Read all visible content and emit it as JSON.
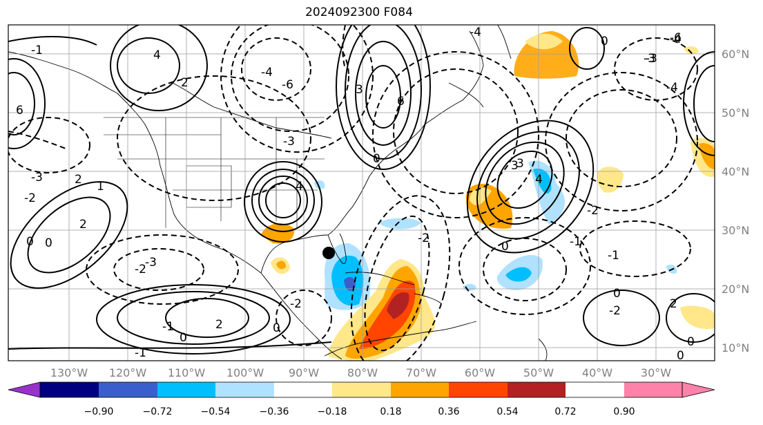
{
  "title": "2024092300 F084",
  "lat_labels": [
    "60°N",
    "50°N",
    "40°N",
    "30°N",
    "20°N",
    "10°N"
  ],
  "lon_labels": [
    "130°W",
    "120°W",
    "110°W",
    "100°W",
    "90°W",
    "80°W",
    "70°W",
    "60°W",
    "50°W",
    "40°W",
    "30°W"
  ],
  "colorbar": {
    "ticks": [
      "−0.90",
      "−0.72",
      "−0.54",
      "−0.36",
      "−0.18",
      "0.18",
      "0.36",
      "0.54",
      "0.72",
      "0.90"
    ],
    "colors": [
      "#9932cc",
      "#000080",
      "#3a5fcd",
      "#00bfff",
      "#b0e2ff",
      "#ffffff",
      "#ffe78a",
      "#ffa500",
      "#ff4500",
      "#b22222",
      "#ff82ab"
    ]
  },
  "contour_labels": [
    "-1",
    "4",
    "2",
    "-4",
    "-4",
    "-3",
    "-6",
    "6",
    "-3",
    "4",
    "-3",
    "-6",
    "3",
    "-2",
    "0",
    "2",
    "-2",
    "-3",
    "-4",
    "3",
    "-2",
    "-1",
    "0",
    "-2",
    "-1",
    "0",
    "-1",
    "2",
    "-2",
    "0",
    "1",
    "-1",
    "0",
    "-2",
    "2",
    "0",
    "0",
    "-4",
    "0",
    "-3",
    "0",
    "4",
    "6",
    "0",
    "2",
    "3"
  ],
  "marker": "storm-center"
}
